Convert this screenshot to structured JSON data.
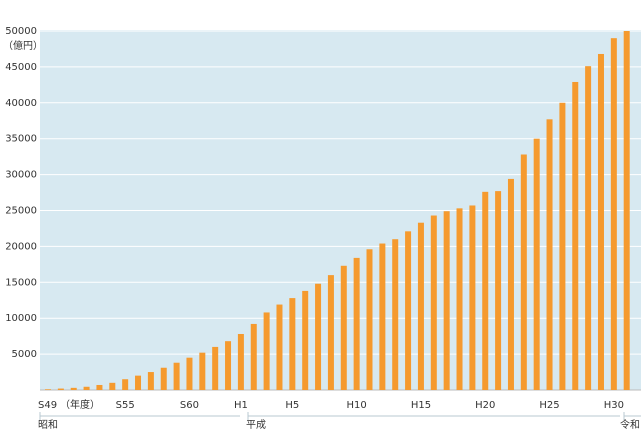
{
  "chart_data": {
    "type": "bar",
    "y_label": "（億円）",
    "x_note": "（年度）",
    "categories": [
      "S49",
      null,
      null,
      null,
      null,
      null,
      "S55",
      null,
      null,
      null,
      null,
      "S60",
      null,
      null,
      null,
      "H1",
      null,
      null,
      null,
      "H5",
      null,
      null,
      null,
      null,
      "H10",
      null,
      null,
      null,
      null,
      "H15",
      null,
      null,
      null,
      null,
      "H20",
      null,
      null,
      null,
      null,
      "H25",
      null,
      null,
      null,
      null,
      "H30",
      null
    ],
    "values": [
      100,
      200,
      300,
      450,
      700,
      1000,
      1500,
      2000,
      2500,
      3100,
      3800,
      4500,
      5200,
      6000,
      6800,
      7800,
      9200,
      10800,
      11900,
      12800,
      13800,
      14800,
      16000,
      17300,
      18400,
      19600,
      20400,
      21000,
      22100,
      23300,
      24300,
      24900,
      25300,
      25700,
      27600,
      27700,
      29400,
      32800,
      35000,
      37700,
      40000,
      42900,
      45100,
      46800,
      49000,
      50000
    ],
    "color": "#f59a2e",
    "ylim": [
      0,
      50000
    ],
    "yticks": [
      5000,
      10000,
      15000,
      20000,
      25000,
      30000,
      35000,
      40000,
      45000,
      50000
    ],
    "grid": true,
    "eras": [
      "昭和",
      "平成",
      "令和"
    ]
  }
}
